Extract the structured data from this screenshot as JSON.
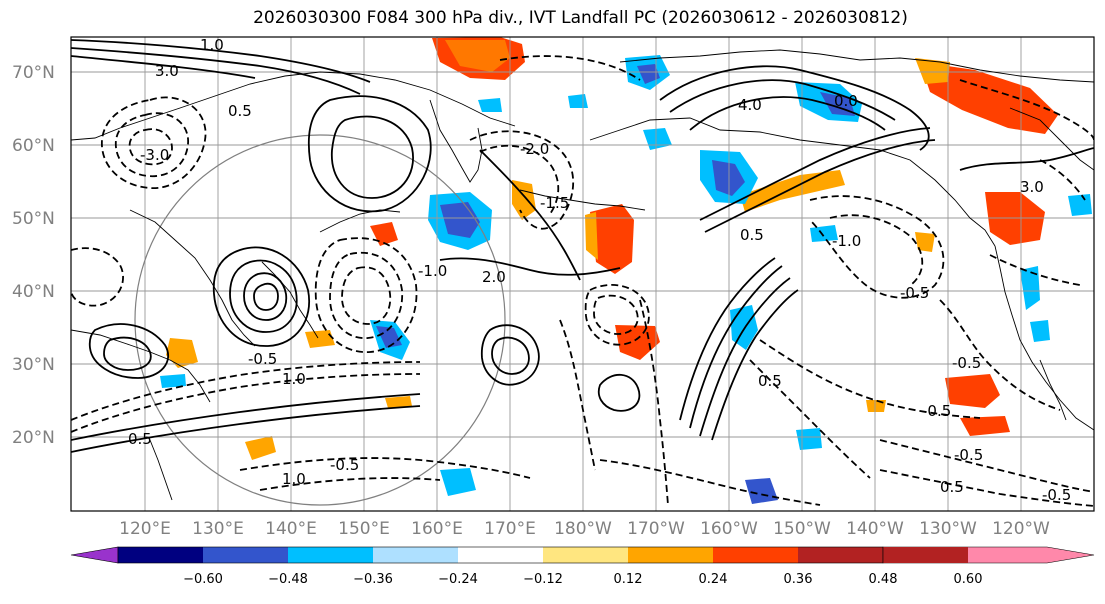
{
  "title": "2026030300 F084 300 hPa div., IVT Landfall PC (2026030612 - 2026030812)",
  "latitude_labels": [
    "70°N",
    "60°N",
    "50°N",
    "40°N",
    "30°N",
    "20°N"
  ],
  "longitude_labels": [
    "120°E",
    "130°E",
    "140°E",
    "150°E",
    "160°E",
    "170°E",
    "180°W",
    "170°W",
    "160°W",
    "150°W",
    "140°W",
    "130°W",
    "120°W"
  ],
  "colorbar": {
    "colors": [
      "#9933cc",
      "#000080",
      "#3355cc",
      "#00bfff",
      "#aee0ff",
      "#ffffff",
      "#ffe680",
      "#ffa500",
      "#ff4000",
      "#b22222",
      "#ff88aa"
    ],
    "tick_labels": [
      "−0.60",
      "−0.48",
      "−0.36",
      "−0.24",
      "−0.12",
      "0.12",
      "0.24",
      "0.36",
      "0.48",
      "0.60"
    ]
  },
  "contour_labels": [
    "1.0",
    "-1.0",
    "0.5",
    "-0.5",
    "3.0",
    "-3.0",
    "4.0",
    "-2.0",
    "2.0",
    "-1.5",
    "0.0",
    "-0.5",
    "0.5",
    "-0.5",
    "1.0",
    "-1.0",
    "3.0",
    "-0.5",
    "0.5",
    "-0.5",
    "1.0",
    "0.5",
    "-0.5",
    "0.5",
    "-0.5"
  ],
  "colors": {
    "grid": "#999999",
    "coast": "#000000",
    "circle": "#808080"
  }
}
